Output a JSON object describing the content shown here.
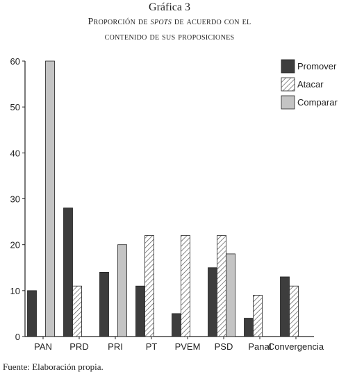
{
  "figure": {
    "number_label": "Gráfica 3",
    "title_line1": "Proporción de spots de acuerdo con el",
    "title_line1_parts": [
      "Proporción de ",
      "spots",
      " de acuerdo con el"
    ],
    "title_line2": "contenido de sus proposiciones",
    "source": "Fuente: Elaboración propia."
  },
  "colors": {
    "promover": "#3d3d3d",
    "atacar_stripe": "#555555",
    "comparar": "#c4c4c4"
  },
  "chart_data": {
    "type": "bar",
    "categories": [
      "PAN",
      "PRD",
      "PRI",
      "PT",
      "PVEM",
      "PSD",
      "Panal",
      "Convergencia"
    ],
    "series": [
      {
        "name": "Promover",
        "values": [
          10,
          28,
          14,
          11,
          5,
          15,
          4,
          13
        ]
      },
      {
        "name": "Atacar",
        "values": [
          0,
          11,
          0,
          22,
          22,
          22,
          9,
          11
        ]
      },
      {
        "name": "Comparar",
        "values": [
          60,
          0,
          20,
          0,
          0,
          18,
          0,
          0
        ]
      }
    ],
    "ylim": [
      0,
      60
    ],
    "yticks": [
      0,
      10,
      20,
      30,
      40,
      50,
      60
    ],
    "grid": false,
    "legend_position": "top-right"
  }
}
